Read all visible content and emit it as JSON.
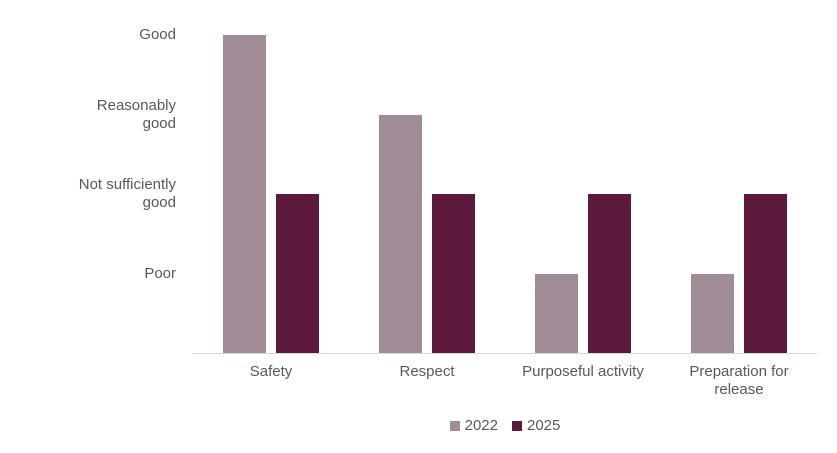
{
  "page": {
    "background_color": "#ffffff",
    "text_color": "#595959",
    "axis_line_color": "#d9d9d9"
  },
  "chart_data": {
    "type": "bar",
    "title": "",
    "xlabel": "",
    "ylabel": "",
    "categories": [
      "Safety",
      "Respect",
      "Purposeful activity",
      "Preparation for release"
    ],
    "series": [
      {
        "name": "2022",
        "color": "#A18D97",
        "values": [
          4,
          3,
          1,
          1
        ]
      },
      {
        "name": "2025",
        "color": "#5E1A3D",
        "values": [
          2,
          2,
          2,
          2
        ]
      }
    ],
    "y_ticks": [
      {
        "value": 4,
        "label": "Good"
      },
      {
        "value": 3,
        "label": "Reasonably\ngood"
      },
      {
        "value": 2,
        "label": "Not sufficiently\ngood"
      },
      {
        "value": 1,
        "label": "Poor"
      }
    ],
    "ylim": [
      0,
      4
    ],
    "grid": false,
    "legend_position": "bottom-center",
    "legend": [
      "2022",
      "2025"
    ]
  }
}
